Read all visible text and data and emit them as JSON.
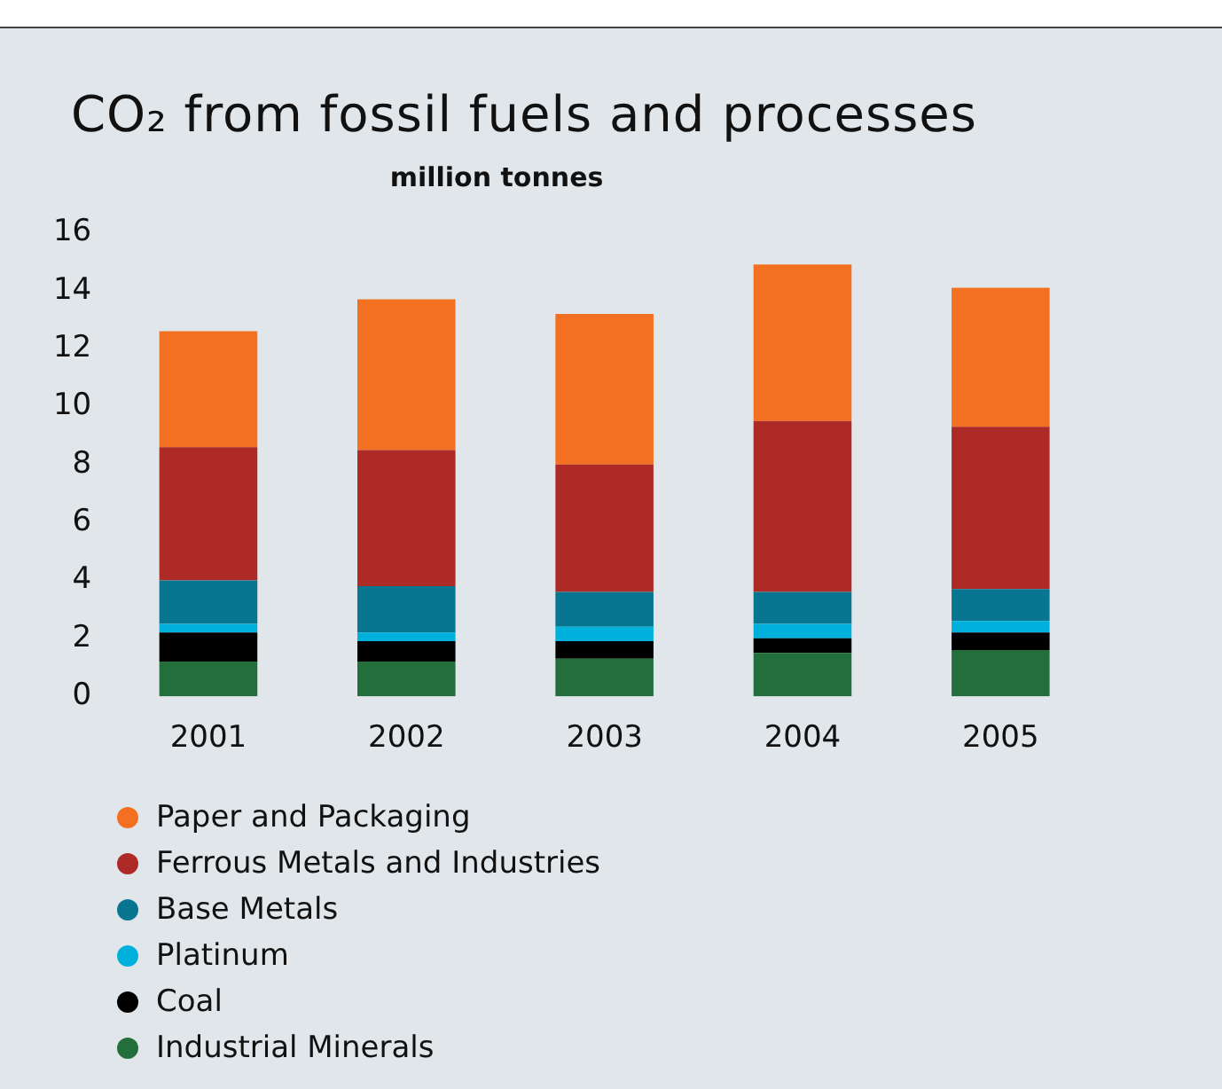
{
  "chart_data": {
    "type": "bar",
    "title": "CO₂ from fossil fuels and processes",
    "subtitle": "million tonnes",
    "categories": [
      "2001",
      "2002",
      "2003",
      "2004",
      "2005"
    ],
    "stacked": true,
    "ylim": [
      0,
      16
    ],
    "yticks": [
      0,
      2,
      4,
      6,
      8,
      10,
      12,
      14,
      16
    ],
    "grid": false,
    "legend": "bottom",
    "series": [
      {
        "name": "Industrial Minerals",
        "color": "#236f3b",
        "values": [
          1.2,
          1.2,
          1.3,
          1.5,
          1.6
        ]
      },
      {
        "name": "Coal",
        "color": "#000000",
        "values": [
          1.0,
          0.7,
          0.6,
          0.5,
          0.6
        ]
      },
      {
        "name": "Platinum",
        "color": "#00b0dc",
        "values": [
          0.3,
          0.3,
          0.5,
          0.5,
          0.4
        ]
      },
      {
        "name": "Base Metals",
        "color": "#087691",
        "values": [
          1.5,
          1.6,
          1.2,
          1.1,
          1.1
        ]
      },
      {
        "name": "Ferrous Metals and Industries",
        "color": "#ae2a27",
        "values": [
          4.6,
          4.7,
          4.4,
          5.9,
          5.6
        ]
      },
      {
        "name": "Paper and Packaging",
        "color": "#f37021",
        "values": [
          4.0,
          5.2,
          5.2,
          5.4,
          4.8
        ]
      }
    ]
  }
}
